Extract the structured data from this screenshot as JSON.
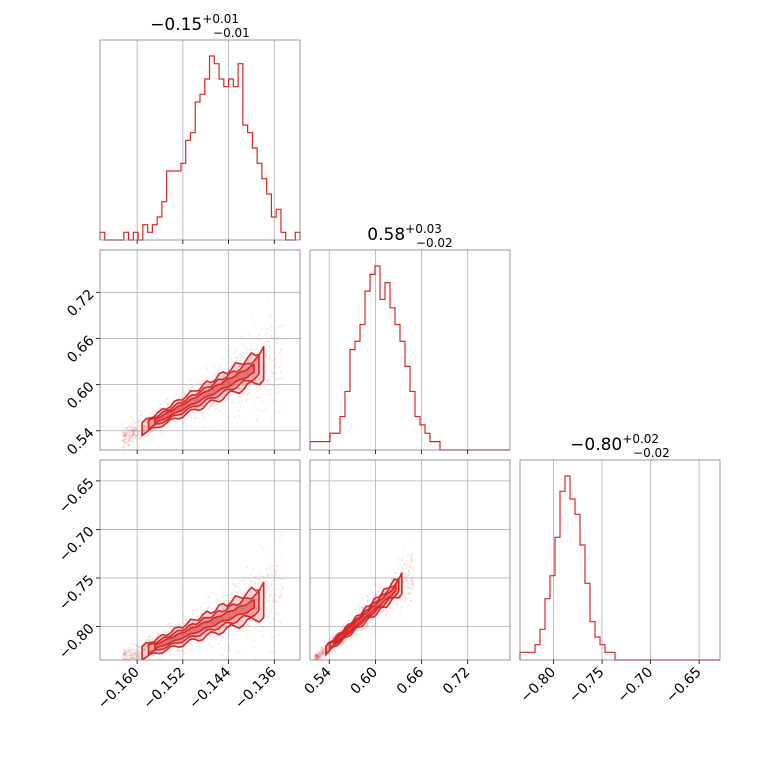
{
  "chart_data": {
    "type": "corner",
    "color": "#d62728",
    "parameters": [
      {
        "index": 0,
        "median": -0.15,
        "title_main": "−0.15",
        "title_sup": "+0.01",
        "title_sub": "−0.01",
        "range": [
          -0.1665,
          -0.1315
        ],
        "ticks": [
          -0.16,
          -0.152,
          -0.144,
          -0.136
        ],
        "tick_labels": [
          "−0.160",
          "−0.152",
          "−0.144",
          "−0.136"
        ]
      },
      {
        "index": 1,
        "median": 0.58,
        "title_main": "0.58",
        "title_sup": "+0.03",
        "title_sub": "−0.02",
        "range": [
          0.515,
          0.775
        ],
        "ticks": [
          0.54,
          0.6,
          0.66,
          0.72
        ],
        "tick_labels": [
          "0.54",
          "0.60",
          "0.66",
          "0.72"
        ]
      },
      {
        "index": 2,
        "median": -0.8,
        "title_main": "−0.80",
        "title_sup": "+0.02",
        "title_sub": "−0.02",
        "range": [
          -0.8345,
          -0.6285
        ],
        "ticks": [
          -0.8,
          -0.75,
          -0.7,
          -0.65
        ],
        "tick_labels": [
          "−0.80",
          "−0.75",
          "−0.70",
          "−0.65"
        ]
      }
    ],
    "histograms": {
      "p0": [
        1,
        0,
        0,
        0,
        0,
        1,
        0,
        1,
        0,
        2,
        1,
        2,
        3,
        5,
        9,
        9,
        9,
        10,
        13,
        14,
        18,
        19,
        21,
        24,
        23,
        21,
        20,
        21,
        20,
        23,
        15,
        14,
        12,
        10,
        8,
        6,
        3,
        4,
        1,
        0,
        0,
        1
      ],
      "p1": [
        1,
        1,
        1,
        1,
        2,
        2,
        4,
        7,
        12,
        13,
        15,
        19,
        21,
        22,
        18,
        20,
        17,
        15,
        13,
        10,
        7,
        4,
        3,
        2,
        1,
        1,
        0,
        0,
        0,
        0,
        0,
        0,
        0,
        0,
        0,
        0,
        0,
        0,
        0,
        0
      ],
      "p2": [
        1,
        1,
        1,
        2,
        4,
        8,
        11,
        16,
        22,
        24,
        21,
        19,
        15,
        10,
        5,
        3,
        2,
        1,
        1,
        0,
        0,
        0,
        0,
        0,
        0,
        0,
        0,
        0,
        0,
        0,
        0,
        0,
        0,
        0,
        0,
        0,
        0,
        0,
        0,
        0
      ]
    },
    "correlations": {
      "p1_vs_p0": {
        "x0": -0.1625,
        "y0": 0.53,
        "x1": -0.1345,
        "y1": 0.64,
        "ridge_width": 0.012
      },
      "p2_vs_p0": {
        "x0": -0.1625,
        "y0": -0.835,
        "x1": -0.1345,
        "y1": -0.765,
        "ridge_width": 0.01
      },
      "p2_vs_p1": {
        "x0": 0.52,
        "y0": -0.835,
        "x1": 0.65,
        "y1": -0.745,
        "ridge_width": 0.006
      }
    },
    "grid": true
  }
}
